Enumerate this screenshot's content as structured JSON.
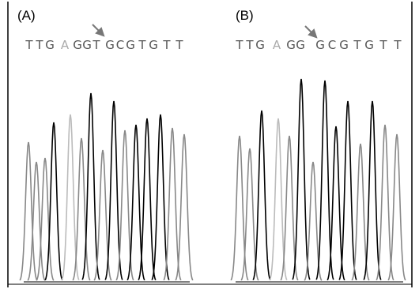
{
  "panels": [
    {
      "label": "(A)",
      "bases": [
        "T",
        "T",
        "G",
        "A",
        "G",
        "G",
        "T",
        "G",
        "C",
        "G",
        "T",
        "G",
        "T",
        "T"
      ]
    },
    {
      "label": "(B)",
      "bases": [
        "T",
        "T",
        "G",
        "A",
        "G",
        "G",
        "G",
        "C",
        "G",
        "T",
        "G",
        "T",
        "T"
      ]
    }
  ]
}
